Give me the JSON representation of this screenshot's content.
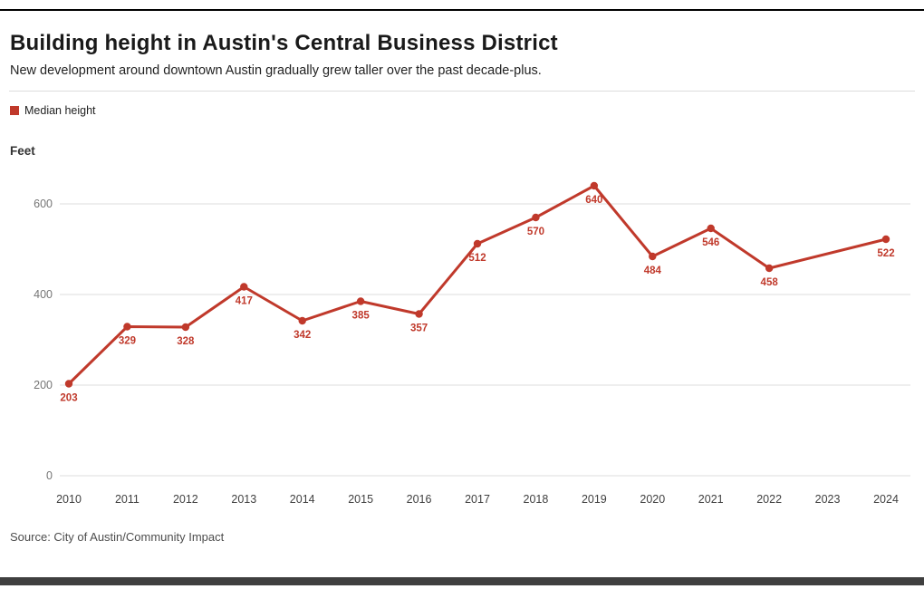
{
  "header": {
    "title": "Building height in Austin's Central Business District",
    "subtitle": "New development around downtown Austin gradually grew taller over the past decade-plus."
  },
  "legend": {
    "items": [
      {
        "label": "Median height",
        "color": "#c0392b"
      }
    ]
  },
  "axis": {
    "y_title": "Feet"
  },
  "source": "Source: City of Austin/Community Impact",
  "colors": {
    "line": "#c0392b",
    "data_label": "#c0392b",
    "grid": "#dedede",
    "y_tick_text": "#757575",
    "x_tick_text": "#404040"
  },
  "chart_data": {
    "type": "line",
    "title": "Building height in Austin's Central Business District",
    "xlabel": "",
    "ylabel": "Feet",
    "categories": [
      "2010",
      "2011",
      "2012",
      "2013",
      "2014",
      "2015",
      "2016",
      "2017",
      "2018",
      "2019",
      "2020",
      "2021",
      "2022",
      "2023",
      "2024"
    ],
    "series": [
      {
        "name": "Median height",
        "values": [
          203,
          329,
          328,
          417,
          342,
          385,
          357,
          512,
          570,
          640,
          484,
          546,
          458,
          null,
          522
        ]
      }
    ],
    "ylim": [
      0,
      660
    ],
    "yticks": [
      0,
      200,
      400,
      600
    ],
    "grid": "horizontal",
    "legend_position": "top-left",
    "data_labels": true
  }
}
